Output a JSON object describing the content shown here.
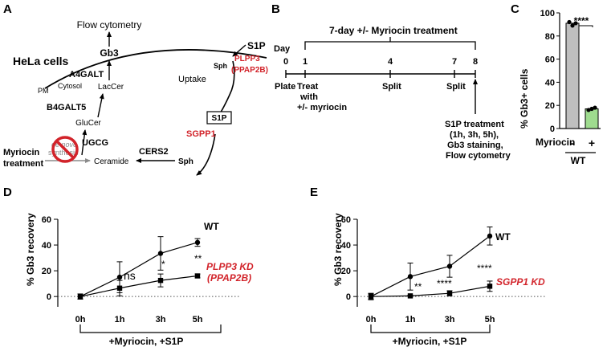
{
  "panels": [
    "A",
    "B",
    "C",
    "D",
    "E"
  ],
  "panel_a": {
    "flow_cytometry": "Flow cytometry",
    "hela_cells": "HeLa cells",
    "gb3": "Gb3",
    "a4galt": "A4GALT",
    "laccer": "LacCer",
    "b4galt5": "B4GALT5",
    "glucer": "GluCer",
    "ugcg": "UGCG",
    "cers2": "CERS2",
    "ceramide": "Ceramide",
    "sph_bottom": "Sph",
    "sph_top": "Sph",
    "s1p_top": "S1P",
    "plpp3": "PLPP3",
    "ppap2b": "(PPAP2B)",
    "uptake": "Uptake",
    "s1p_box": "S1P",
    "sgpp1": "SGPP1",
    "pm": "PM",
    "cytosol": "Cytosol",
    "myriocin": "Myriocin",
    "treatment": "treatment",
    "de_novo_1": "de novo",
    "de_novo_2": "synthesis"
  },
  "panel_b": {
    "title": "7-day +/- Myriocin treatment",
    "day": "Day",
    "ticks": [
      "0",
      "1",
      "4",
      "7",
      "8"
    ],
    "plate": "Plate",
    "treat_1": "Treat",
    "treat_2": "with",
    "treat_3": "+/- myriocin",
    "split_1": "Split",
    "split_2": "Split",
    "note_1": "S1P treatment",
    "note_2": "(1h, 3h, 5h),",
    "note_3": "Gb3 staining,",
    "note_4": "Flow cytometry"
  },
  "panel_c": {
    "chart_data": {
      "type": "bar",
      "ylabel": "% Gb3+ cells",
      "yticks": [
        "0",
        "20",
        "40",
        "60",
        "80",
        "100"
      ],
      "ylim": [
        0,
        100
      ],
      "categories": [
        "-",
        "+"
      ],
      "values": [
        91,
        17
      ],
      "points": [
        [
          92,
          89,
          91
        ],
        [
          16,
          17,
          18
        ]
      ],
      "colors": [
        "#bfbfbf",
        "#9fdc8f"
      ],
      "row_label": "Myriocin",
      "group_label": "WT",
      "significance": "****"
    }
  },
  "panel_d": {
    "chart_data": {
      "type": "line",
      "ylabel": "% Gb3 recovery",
      "yticks": [
        "0",
        "20",
        "40",
        "60"
      ],
      "ylim": [
        -8,
        60
      ],
      "categories": [
        "0h",
        "1h",
        "3h",
        "5h"
      ],
      "xlabel": "+Myriocin, +S1P",
      "series": [
        {
          "name": "WT",
          "marker": "circle",
          "values": [
            0,
            15,
            33.5,
            42
          ],
          "err": [
            2,
            12,
            13,
            3
          ]
        },
        {
          "name": "PLPP3 KD",
          "name_sub": "(PPAP2B)",
          "marker": "square",
          "values": [
            0,
            6.5,
            12.5,
            16
          ],
          "err": [
            2,
            6,
            5,
            1.5
          ]
        }
      ],
      "annotations": [
        "ns",
        "*",
        "**"
      ]
    }
  },
  "panel_e": {
    "chart_data": {
      "type": "line",
      "ylabel": "% Gb3 recovery",
      "yticks": [
        "0",
        "20",
        "40",
        "60"
      ],
      "ylim": [
        -8,
        60
      ],
      "categories": [
        "0h",
        "1h",
        "3h",
        "5h"
      ],
      "xlabel": "+Myriocin, +S1P",
      "series": [
        {
          "name": "WT",
          "marker": "circle",
          "values": [
            0,
            15.5,
            23.5,
            47
          ],
          "err": [
            2.5,
            10.5,
            8.5,
            7
          ]
        },
        {
          "name": "SGPP1 KD",
          "marker": "square",
          "values": [
            0,
            0.5,
            2.5,
            8
          ],
          "err": [
            2,
            0.5,
            2,
            4
          ]
        }
      ],
      "annotations": [
        "**",
        "****",
        "****"
      ]
    }
  }
}
